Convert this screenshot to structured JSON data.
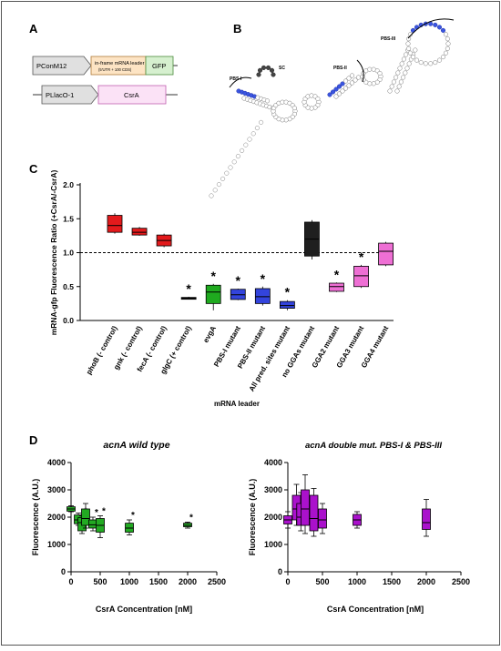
{
  "panels": {
    "a": {
      "letter": "A",
      "construct1": {
        "promoter": "PConM12",
        "leader": "in-frame mRNA leader",
        "leader_sub": "(5'UTR + 100 CDS)",
        "reporter": "GFP"
      },
      "construct2": {
        "promoter": "PLlacO-1",
        "gene": "CsrA"
      }
    },
    "b": {
      "letter": "B",
      "labels": {
        "pbs1": "PBS-I",
        "pbs2": "PBS-II",
        "pbs3": "PBS-III",
        "sc": "SC"
      }
    },
    "c": {
      "letter": "C"
    },
    "d": {
      "letter": "D"
    }
  },
  "chart_data": [
    {
      "id": "panel-c",
      "type": "box",
      "ylabel": "mRNA-gfp Fluorescence Ratio (+CsrA/-CsrA)",
      "xlabel": "mRNA leader",
      "ylim": [
        0,
        2.0
      ],
      "yticks": [
        "0.0",
        "0.5",
        "1.0",
        "1.5",
        "2.0"
      ],
      "reference_line": 1.0,
      "significance_marker": "*",
      "colors": {
        "red": "#e31a1c",
        "black": "#1f1f1f",
        "green": "#1faa1f",
        "blue": "#3344dd",
        "pink": "#ee6fd4"
      },
      "categories": [
        {
          "label": "phoB (- control)",
          "min": 1.28,
          "q1": 1.3,
          "median": 1.4,
          "q3": 1.55,
          "max": 1.58,
          "color": "red",
          "sig": false
        },
        {
          "label": "gnk (- control)",
          "min": 1.25,
          "q1": 1.26,
          "median": 1.3,
          "q3": 1.36,
          "max": 1.38,
          "color": "red",
          "sig": false
        },
        {
          "label": "fecA (- control)",
          "min": 1.08,
          "q1": 1.1,
          "median": 1.18,
          "q3": 1.26,
          "max": 1.28,
          "color": "red",
          "sig": false
        },
        {
          "label": "glgC (+ control)",
          "min": 0.31,
          "q1": 0.32,
          "median": 0.33,
          "q3": 0.34,
          "max": 0.35,
          "color": "black",
          "sig": true
        },
        {
          "label": "evgA",
          "min": 0.15,
          "q1": 0.25,
          "median": 0.42,
          "q3": 0.52,
          "max": 0.54,
          "color": "green",
          "sig": true
        },
        {
          "label": "PBS-I mutant",
          "min": 0.3,
          "q1": 0.31,
          "median": 0.38,
          "q3": 0.46,
          "max": 0.47,
          "color": "blue",
          "sig": true
        },
        {
          "label": "PBS-II mutant",
          "min": 0.22,
          "q1": 0.25,
          "median": 0.35,
          "q3": 0.47,
          "max": 0.5,
          "color": "blue",
          "sig": true
        },
        {
          "label": "All pred. sites mutant",
          "min": 0.15,
          "q1": 0.18,
          "median": 0.22,
          "q3": 0.28,
          "max": 0.3,
          "color": "blue",
          "sig": true
        },
        {
          "label": "no GGAs mutant",
          "min": 0.9,
          "q1": 0.95,
          "median": 1.2,
          "q3": 1.45,
          "max": 1.48,
          "color": "black",
          "sig": false
        },
        {
          "label": "GGA2 mutant",
          "min": 0.42,
          "q1": 0.43,
          "median": 0.5,
          "q3": 0.55,
          "max": 0.56,
          "color": "pink",
          "sig": true
        },
        {
          "label": "GGA3 mutant",
          "min": 0.48,
          "q1": 0.5,
          "median": 0.66,
          "q3": 0.8,
          "max": 0.82,
          "color": "pink",
          "sig": true
        },
        {
          "label": "GGA4 mutant",
          "min": 0.8,
          "q1": 0.82,
          "median": 1.02,
          "q3": 1.14,
          "max": 1.16,
          "color": "pink",
          "sig": false
        }
      ]
    },
    {
      "id": "panel-d-left",
      "type": "box",
      "title": "acnA wild type",
      "xlabel": "CsrA Concentration [nM]",
      "ylabel": "Fluorescence (A.U.)",
      "xlim": [
        0,
        2500
      ],
      "ylim": [
        0,
        4000
      ],
      "xticks": [
        "0",
        "500",
        "1000",
        "1500",
        "2000",
        "2500"
      ],
      "yticks": [
        "0",
        "1000",
        "2000",
        "3000",
        "4000"
      ],
      "color": "#22aa22",
      "points": [
        {
          "x": 0,
          "min": 2200,
          "q1": 2220,
          "median": 2300,
          "q3": 2380,
          "max": 2420,
          "sig": false
        },
        {
          "x": 125,
          "min": 1700,
          "q1": 1760,
          "median": 1900,
          "q3": 2080,
          "max": 2150,
          "sig": false
        },
        {
          "x": 188,
          "min": 1400,
          "q1": 1500,
          "median": 1800,
          "q3": 1980,
          "max": 2050,
          "sig": true
        },
        {
          "x": 250,
          "min": 1600,
          "q1": 1700,
          "median": 1950,
          "q3": 2300,
          "max": 2500,
          "sig": false
        },
        {
          "x": 375,
          "min": 1500,
          "q1": 1600,
          "median": 1720,
          "q3": 1900,
          "max": 2000,
          "sig": true
        },
        {
          "x": 500,
          "min": 1250,
          "q1": 1450,
          "median": 1700,
          "q3": 1950,
          "max": 2050,
          "sig": true
        },
        {
          "x": 1000,
          "min": 1350,
          "q1": 1450,
          "median": 1600,
          "q3": 1780,
          "max": 1900,
          "sig": true
        },
        {
          "x": 2000,
          "min": 1600,
          "q1": 1650,
          "median": 1700,
          "q3": 1780,
          "max": 1820,
          "sig": true
        }
      ]
    },
    {
      "id": "panel-d-right",
      "type": "box",
      "title": "acnA double mut. PBS-I & PBS-III",
      "xlabel": "CsrA Concentration [nM]",
      "ylabel": "Fluorescence (A.U.)",
      "xlim": [
        0,
        2500
      ],
      "ylim": [
        0,
        4000
      ],
      "xticks": [
        "0",
        "500",
        "1000",
        "1500",
        "2000",
        "2500"
      ],
      "yticks": [
        "0",
        "1000",
        "2000",
        "3000",
        "4000"
      ],
      "color": "#aa11cc",
      "points": [
        {
          "x": 0,
          "min": 1600,
          "q1": 1750,
          "median": 1900,
          "q3": 2050,
          "max": 2200,
          "sig": false
        },
        {
          "x": 125,
          "min": 1700,
          "q1": 1900,
          "median": 2300,
          "q3": 2800,
          "max": 3200,
          "sig": false
        },
        {
          "x": 188,
          "min": 1500,
          "q1": 1700,
          "median": 2000,
          "q3": 2500,
          "max": 2900,
          "sig": false
        },
        {
          "x": 250,
          "min": 1400,
          "q1": 1700,
          "median": 2300,
          "q3": 3000,
          "max": 3550,
          "sig": false
        },
        {
          "x": 375,
          "min": 1300,
          "q1": 1500,
          "median": 1950,
          "q3": 2800,
          "max": 3050,
          "sig": false
        },
        {
          "x": 500,
          "min": 1400,
          "q1": 1600,
          "median": 1900,
          "q3": 2300,
          "max": 2500,
          "sig": false
        },
        {
          "x": 1000,
          "min": 1600,
          "q1": 1700,
          "median": 1900,
          "q3": 2100,
          "max": 2200,
          "sig": false
        },
        {
          "x": 2000,
          "min": 1300,
          "q1": 1550,
          "median": 1800,
          "q3": 2300,
          "max": 2650,
          "sig": false
        }
      ]
    }
  ]
}
